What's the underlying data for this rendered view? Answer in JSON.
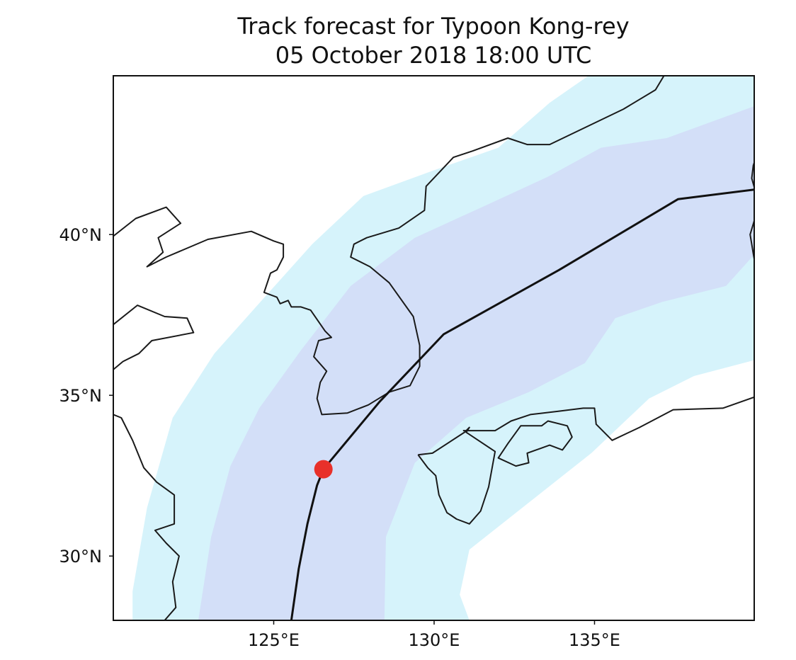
{
  "title": {
    "line1": "Track forecast for Typoon Kong-rey",
    "line2": "05 October 2018 18:00 UTC"
  },
  "map": {
    "lon_range": [
      120.0,
      140.0
    ],
    "lat_range": [
      28.0,
      45.0
    ],
    "x_ticks": [
      {
        "value": 125,
        "label": "125°E"
      },
      {
        "value": 130,
        "label": "130°E"
      },
      {
        "value": 135,
        "label": "135°E"
      }
    ],
    "y_ticks": [
      {
        "value": 40,
        "label": "40°N"
      },
      {
        "value": 35,
        "label": "35°N"
      },
      {
        "value": 30,
        "label": "30°N"
      }
    ],
    "colors": {
      "outer_cone": "#d6f3fb",
      "inner_cone": "#d3dff8",
      "coastline": "#1a1a1a",
      "track": "#111111",
      "current_position": "#e8302a",
      "frame": "#111111"
    },
    "forecast_track": [
      [
        125.55,
        28.0
      ],
      [
        125.78,
        29.6
      ],
      [
        126.05,
        31.0
      ],
      [
        126.35,
        32.2
      ],
      [
        126.55,
        32.7
      ],
      [
        128.3,
        34.8
      ],
      [
        130.3,
        36.9
      ],
      [
        133.9,
        38.9
      ],
      [
        137.6,
        41.1
      ],
      [
        140.0,
        41.4
      ]
    ],
    "current_position": {
      "lon": 126.55,
      "lat": 32.7
    },
    "outer_cone": [
      [
        120.6,
        28.0
      ],
      [
        120.6,
        28.9
      ],
      [
        121.05,
        31.5
      ],
      [
        121.85,
        34.3
      ],
      [
        123.15,
        36.3
      ],
      [
        124.85,
        38.2
      ],
      [
        126.2,
        39.7
      ],
      [
        127.8,
        41.2
      ],
      [
        130.0,
        42.0
      ],
      [
        132.0,
        42.7
      ],
      [
        133.6,
        44.1
      ],
      [
        134.9,
        45.0
      ],
      [
        140.0,
        45.0
      ],
      [
        140.0,
        36.1
      ],
      [
        138.1,
        35.6
      ],
      [
        136.7,
        34.9
      ],
      [
        134.9,
        33.2
      ],
      [
        133.0,
        31.7
      ],
      [
        131.1,
        30.2
      ],
      [
        130.8,
        28.8
      ],
      [
        131.1,
        28.0
      ]
    ],
    "inner_cone": [
      [
        122.65,
        28.0
      ],
      [
        123.05,
        30.6
      ],
      [
        123.65,
        32.8
      ],
      [
        124.55,
        34.6
      ],
      [
        125.85,
        36.4
      ],
      [
        127.4,
        38.4
      ],
      [
        129.4,
        39.9
      ],
      [
        131.6,
        40.9
      ],
      [
        133.55,
        41.8
      ],
      [
        135.2,
        42.7
      ],
      [
        137.25,
        43.0
      ],
      [
        140.0,
        44.0
      ],
      [
        140.0,
        39.4
      ],
      [
        139.1,
        38.4
      ],
      [
        137.1,
        37.9
      ],
      [
        135.65,
        37.4
      ],
      [
        134.7,
        36.0
      ],
      [
        132.95,
        35.1
      ],
      [
        131.0,
        34.3
      ],
      [
        129.4,
        32.9
      ],
      [
        128.5,
        30.6
      ],
      [
        128.45,
        28.0
      ]
    ],
    "coastlines": [
      [
        [
          120.0,
          39.95
        ],
        [
          120.7,
          40.5
        ],
        [
          121.65,
          40.85
        ],
        [
          122.1,
          40.35
        ],
        [
          121.4,
          39.9
        ],
        [
          121.55,
          39.45
        ],
        [
          121.05,
          39.0
        ],
        [
          121.65,
          39.3
        ],
        [
          122.95,
          39.85
        ],
        [
          124.3,
          40.1
        ],
        [
          125.0,
          39.8
        ],
        [
          125.3,
          39.7
        ],
        [
          125.3,
          39.3
        ],
        [
          125.1,
          38.9
        ],
        [
          124.9,
          38.8
        ],
        [
          124.7,
          38.2
        ],
        [
          125.1,
          38.05
        ],
        [
          125.2,
          37.85
        ],
        [
          125.45,
          37.95
        ],
        [
          125.55,
          37.75
        ],
        [
          125.85,
          37.75
        ],
        [
          126.15,
          37.65
        ],
        [
          126.6,
          37.0
        ],
        [
          126.8,
          36.8
        ],
        [
          126.4,
          36.7
        ],
        [
          126.25,
          36.2
        ],
        [
          126.65,
          35.75
        ],
        [
          126.45,
          35.4
        ],
        [
          126.35,
          34.9
        ],
        [
          126.5,
          34.4
        ],
        [
          127.3,
          34.45
        ],
        [
          127.95,
          34.7
        ],
        [
          128.6,
          35.1
        ],
        [
          129.25,
          35.3
        ],
        [
          129.55,
          35.9
        ],
        [
          129.55,
          36.55
        ],
        [
          129.35,
          37.45
        ],
        [
          128.6,
          38.5
        ],
        [
          128.0,
          39.0
        ],
        [
          127.4,
          39.3
        ],
        [
          127.5,
          39.7
        ],
        [
          127.9,
          39.9
        ],
        [
          128.9,
          40.2
        ],
        [
          129.7,
          40.75
        ],
        [
          129.75,
          41.5
        ],
        [
          130.6,
          42.4
        ],
        [
          131.2,
          42.6
        ],
        [
          132.3,
          43.0
        ],
        [
          132.9,
          42.8
        ],
        [
          133.6,
          42.8
        ],
        [
          135.9,
          43.9
        ],
        [
          136.9,
          44.5
        ],
        [
          137.2,
          45.0
        ]
      ],
      [
        [
          120.0,
          37.2
        ],
        [
          120.75,
          37.8
        ],
        [
          121.6,
          37.45
        ],
        [
          122.3,
          37.4
        ],
        [
          122.5,
          36.95
        ],
        [
          121.2,
          36.7
        ],
        [
          120.8,
          36.3
        ],
        [
          120.3,
          36.05
        ],
        [
          120.0,
          35.8
        ]
      ],
      [
        [
          120.0,
          34.4
        ],
        [
          120.25,
          34.3
        ],
        [
          120.6,
          33.6
        ],
        [
          120.95,
          32.75
        ],
        [
          121.35,
          32.3
        ],
        [
          121.9,
          31.9
        ],
        [
          121.9,
          31.0
        ],
        [
          121.3,
          30.8
        ],
        [
          121.65,
          30.4
        ],
        [
          122.05,
          30.0
        ],
        [
          121.85,
          29.2
        ],
        [
          121.95,
          28.4
        ],
        [
          121.6,
          28.0
        ],
        [
          121.0,
          27.9
        ]
      ],
      [
        [
          129.5,
          33.15
        ],
        [
          129.95,
          33.2
        ],
        [
          130.95,
          33.85
        ],
        [
          131.1,
          34.0
        ],
        [
          131.0,
          33.85
        ],
        [
          131.9,
          33.25
        ],
        [
          131.7,
          32.15
        ],
        [
          131.45,
          31.4
        ],
        [
          131.1,
          31.0
        ],
        [
          130.7,
          31.15
        ],
        [
          130.4,
          31.35
        ],
        [
          130.15,
          31.9
        ],
        [
          130.05,
          32.5
        ],
        [
          129.8,
          32.75
        ],
        [
          129.5,
          33.15
        ]
      ],
      [
        [
          132.3,
          33.5
        ],
        [
          132.0,
          33.05
        ],
        [
          132.55,
          32.8
        ],
        [
          132.95,
          32.9
        ],
        [
          132.9,
          33.2
        ],
        [
          133.6,
          33.45
        ],
        [
          134.0,
          33.3
        ],
        [
          134.3,
          33.7
        ],
        [
          134.15,
          34.05
        ],
        [
          133.55,
          34.2
        ],
        [
          133.35,
          34.05
        ],
        [
          132.95,
          34.05
        ],
        [
          132.7,
          34.05
        ],
        [
          132.3,
          33.5
        ]
      ],
      [
        [
          130.9,
          33.9
        ],
        [
          131.9,
          33.9
        ],
        [
          132.4,
          34.2
        ],
        [
          133.0,
          34.4
        ],
        [
          133.85,
          34.5
        ],
        [
          134.65,
          34.6
        ],
        [
          135.0,
          34.6
        ],
        [
          135.05,
          34.1
        ],
        [
          135.55,
          33.6
        ],
        [
          136.4,
          34.0
        ],
        [
          137.45,
          34.55
        ],
        [
          139.0,
          34.6
        ],
        [
          140.0,
          34.95
        ]
      ],
      [
        [
          140.0,
          41.4
        ],
        [
          139.9,
          41.75
        ],
        [
          139.95,
          42.15
        ],
        [
          140.0,
          42.3
        ]
      ],
      [
        [
          140.0,
          39.1
        ],
        [
          139.9,
          39.7
        ],
        [
          139.85,
          40.0
        ],
        [
          140.0,
          40.5
        ]
      ]
    ]
  }
}
